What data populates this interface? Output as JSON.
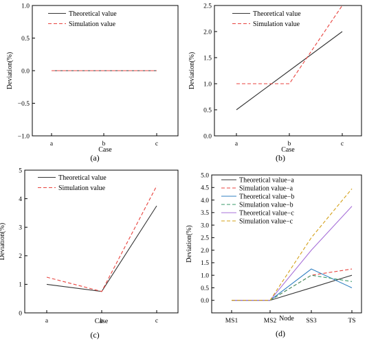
{
  "chart_data": [
    {
      "panel_label": "(a)",
      "type": "line",
      "categories": [
        "a",
        "b",
        "c"
      ],
      "xlabel": "Case",
      "ylabel": "Deviation(%)",
      "ylim": [
        -1.0,
        1.0
      ],
      "yticks": [
        -1.0,
        -0.5,
        0.0,
        0.5,
        1.0
      ],
      "ytick_labels": [
        "−1.0",
        "−0.5",
        "0.0",
        "0.5",
        "1.0"
      ],
      "legend_position": "top-left",
      "grid": false,
      "series": [
        {
          "name": "Theoretical value",
          "values": [
            0,
            0,
            0
          ],
          "color": "#333333",
          "dash": "solid"
        },
        {
          "name": "Simulation value",
          "values": [
            0,
            0,
            0
          ],
          "color": "#e8413c",
          "dash": "dashed"
        }
      ]
    },
    {
      "panel_label": "(b)",
      "type": "line",
      "categories": [
        "a",
        "b",
        "c"
      ],
      "xlabel": "Case",
      "ylabel": "Deviation(%)",
      "ylim": [
        0.0,
        2.5
      ],
      "yticks": [
        0.0,
        0.5,
        1.0,
        1.5,
        2.0,
        2.5
      ],
      "ytick_labels": [
        "0.0",
        "0.5",
        "1.0",
        "1.5",
        "2.0",
        "2.5"
      ],
      "legend_position": "top-left",
      "grid": false,
      "series": [
        {
          "name": "Theoretical value",
          "values": [
            0.5,
            1.25,
            2.0
          ],
          "color": "#333333",
          "dash": "solid"
        },
        {
          "name": "Simulation value",
          "values": [
            1.0,
            1.0,
            2.5
          ],
          "color": "#e8413c",
          "dash": "dashed"
        }
      ]
    },
    {
      "panel_label": "(c)",
      "type": "line",
      "categories": [
        "a",
        "b",
        "c"
      ],
      "xlabel": "Case",
      "ylabel": "Deviation(%)",
      "ylim": [
        0,
        5
      ],
      "yticks": [
        0,
        1,
        2,
        3,
        4,
        5
      ],
      "ytick_labels": [
        "0",
        "1",
        "2",
        "3",
        "4",
        "5"
      ],
      "legend_position": "top-left",
      "grid": false,
      "series": [
        {
          "name": "Theoretical value",
          "values": [
            1.0,
            0.75,
            3.75
          ],
          "color": "#333333",
          "dash": "solid"
        },
        {
          "name": "Simulation value",
          "values": [
            1.25,
            0.75,
            4.45
          ],
          "color": "#e8413c",
          "dash": "dashed"
        }
      ]
    },
    {
      "panel_label": "(d)",
      "type": "line",
      "categories": [
        "MS1",
        "MS2",
        "SS3",
        "TS"
      ],
      "xlabel": "Node",
      "ylabel": "Deviation(%)",
      "ylim": [
        -0.5,
        5.0
      ],
      "yticks": [
        0.0,
        0.5,
        1.0,
        1.5,
        2.0,
        2.5,
        3.0,
        3.5,
        4.0,
        4.5,
        5.0
      ],
      "ytick_labels": [
        "0.0",
        "0.5",
        "1.0",
        "1.5",
        "2.0",
        "2.5",
        "3.0",
        "3.5",
        "4.0",
        "4.5",
        "5.0"
      ],
      "legend_position": "top-left",
      "grid": false,
      "series": [
        {
          "name": "Theoretical value−a",
          "values": [
            0,
            0,
            0.5,
            1.0
          ],
          "color": "#333333",
          "dash": "solid"
        },
        {
          "name": "Simulation value−a",
          "values": [
            0,
            0,
            1.0,
            1.25
          ],
          "color": "#e8413c",
          "dash": "dashed"
        },
        {
          "name": "Theoretical value−b",
          "values": [
            0,
            0,
            1.25,
            0.5
          ],
          "color": "#2f7fc1",
          "dash": "solid"
        },
        {
          "name": "Simulation value−b",
          "values": [
            0,
            0,
            1.0,
            0.75
          ],
          "color": "#3a9a6a",
          "dash": "dashed"
        },
        {
          "name": "Theoretical value−c",
          "values": [
            0,
            0,
            2.0,
            3.75
          ],
          "color": "#a770d8",
          "dash": "solid"
        },
        {
          "name": "Simulation value−c",
          "values": [
            0,
            0,
            2.5,
            4.45
          ],
          "color": "#d4a017",
          "dash": "dashed"
        }
      ]
    }
  ]
}
